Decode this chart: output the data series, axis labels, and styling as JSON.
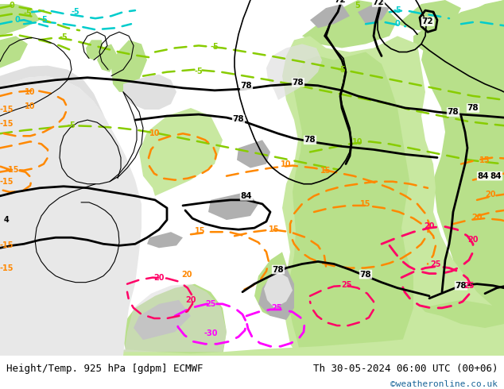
{
  "title_left": "Height/Temp. 925 hPa [gdpm] ECMWF",
  "title_right": "Th 30-05-2024 06:00 UTC (00+06)",
  "credit": "©weatheronline.co.uk",
  "bg_color": "#ffffff",
  "fig_width": 6.34,
  "fig_height": 4.9,
  "dpi": 100,
  "footer_fontsize": 9,
  "credit_color": "#1a6699",
  "footer_bg": "#e0e0e0",
  "ocean_color": "#d8d8d8",
  "land_green": "#b8e08a",
  "land_green_dark": "#90c860",
  "land_grey": "#b0b0b0",
  "land_light_green": "#c8e8a0",
  "contour_color": "#000000",
  "cyan_iso": "#00cccc",
  "green_iso": "#88cc00",
  "orange_iso": "#ff8800",
  "red_iso": "#ff0066",
  "magenta_iso": "#ff00ff"
}
